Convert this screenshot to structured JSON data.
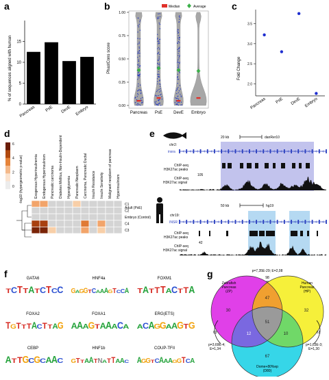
{
  "panels": {
    "a": {
      "letter": "a",
      "chart_data": {
        "type": "bar",
        "categories": [
          "Pancreas",
          "PsE",
          "DevE",
          "Embryo"
        ],
        "values": [
          12.5,
          14.8,
          10.3,
          11.3
        ],
        "ylabel": "% of sequences aligned with human",
        "ylim": [
          0,
          20
        ],
        "yticks": [
          0,
          5,
          10,
          15
        ],
        "xlabel": ""
      }
    },
    "b": {
      "letter": "b",
      "ylabel": "PhastCons score",
      "legend": {
        "median": "Median",
        "average": "Average"
      },
      "colors": {
        "median": "#e0302a",
        "average": "#3cb04a",
        "violin": "#8a8a8a",
        "points": "#2d3fbf"
      },
      "chart_data": {
        "type": "violin",
        "categories": [
          "Pancreas",
          "PsE",
          "DevE",
          "Embryo"
        ],
        "ylabel": "PhastCons score",
        "ylim": [
          0,
          1
        ],
        "yticks": [
          "0.00",
          "0.25",
          "0.50",
          "0.75",
          "1.00"
        ],
        "series": [
          {
            "name": "Median",
            "values": [
              0.05,
              0.08,
              0.05,
              0.08
            ]
          },
          {
            "name": "Average",
            "values": [
              0.38,
              0.4,
              0.38,
              0.37
            ]
          }
        ]
      }
    },
    "c": {
      "letter": "c",
      "chart_data": {
        "type": "scatter",
        "categories": [
          "Pancreas",
          "PsE",
          "DevE",
          "Embryo"
        ],
        "values": [
          3.22,
          2.8,
          3.75,
          1.76
        ],
        "ylabel": "Fold Change",
        "ylim": [
          1.7,
          3.85
        ],
        "yticks": [
          "2.0",
          "2.5",
          "3.0",
          "3.5"
        ]
      }
    },
    "d": {
      "letter": "d",
      "scale_label": "-log10 (hypergeometric p-value)",
      "scale_ticks": [
        "6",
        "4",
        "2",
        "0"
      ],
      "columns": [
        "Exogenous Hyperinsulinemia",
        "Endogenous Hyperinsulinism",
        "Pancreatic carcinoma",
        "Diabetes Mellitus, Non-Insulin-Dependent",
        "Hyperglycemia",
        "Pancreatic Neoplasm",
        "Carcinoma, Pancreatic Ductal",
        "Insulin Resistance",
        "Insulin Sensitivity",
        "Malignant neoplasm of pancreas",
        "Hyperinsulinism"
      ],
      "rows": [
        {
          "label": "C1",
          "note": "Adult (PsE)",
          "values": [
            2,
            2,
            0,
            0,
            0,
            1,
            0,
            0,
            0,
            0,
            0
          ]
        },
        {
          "label": "C2",
          "note": "",
          "values": [
            0,
            0,
            0,
            0,
            0,
            0,
            0,
            0,
            0,
            0,
            0
          ]
        },
        {
          "label": "",
          "note": "Embryo (Control)",
          "values": [
            0,
            0,
            0,
            0,
            0,
            0,
            0,
            0,
            0,
            0,
            0
          ]
        },
        {
          "label": "C4",
          "note": "",
          "values": [
            5,
            5,
            0,
            0,
            0,
            0,
            3,
            0,
            2,
            0,
            0
          ]
        },
        {
          "label": "C3",
          "note": "",
          "values": [
            6,
            6,
            1,
            0,
            0,
            0,
            2,
            0,
            1,
            0,
            0
          ]
        }
      ]
    },
    "e": {
      "letter": "e",
      "zebrafish": {
        "chr": "chr2:",
        "scale": "20 kb",
        "assembly": "danRer10",
        "gene": "insra",
        "peaks_label": "ChIP-seq H3K27ac peaks",
        "signal_label": "ChIP-seq H3K27ac signal",
        "signal_max": "105"
      },
      "human": {
        "chr": "chr19:",
        "scale": "50 kb",
        "assembly": "hg19",
        "gene": "INSR",
        "peaks_label": "ChIP-seq H3K27ac peaks",
        "signal_label": "ChIP-seq H3K27ac signal",
        "signal_max": "42"
      }
    },
    "f": {
      "letter": "f",
      "motifs": [
        {
          "name": "GATA6",
          "seq": "TCTTATCTCC"
        },
        {
          "name": "HNF4a",
          "seq": "GAGGTCAAAGTCCA"
        },
        {
          "name": "FOXM1",
          "seq": "TATTTACTTA"
        },
        {
          "name": "FOXA2",
          "seq": "TGTTTACTTAG"
        },
        {
          "name": "FOXA1",
          "seq": "AAAGTAAACA"
        },
        {
          "name": "ERG(ETS)",
          "seq": "ACAGGAAGTG"
        },
        {
          "name": "CEBP",
          "seq": "ATTGCGCAAC"
        },
        {
          "name": "HNF1b",
          "seq": "GTTAATNATTAAC"
        },
        {
          "name": "COUP-TFII",
          "seq": "AGGTCAAAGGTCA"
        }
      ],
      "colors": {
        "A": "#23a23a",
        "C": "#2a4fd1",
        "G": "#f2a20c",
        "T": "#d62a22",
        "N": "#888888"
      }
    },
    "g": {
      "letter": "g",
      "sets": {
        "zp": "Zebrafish Pancreas (ZP)",
        "hp": "Human Pancreas (HP)",
        "d80": "Dome+80%ep (D80)"
      },
      "counts": {
        "zp_only": "30",
        "hp_only": "32",
        "d80_only": "67",
        "zp_hp": "47",
        "zp_d80": "12",
        "hp_d80": "10",
        "all": "51"
      },
      "stats": {
        "zp_hp": "p=7,35E-29; E=2,08",
        "zp_hp_n": "98",
        "zp_d80": "p=3,69E-4; E=1,34",
        "zp_d80_n": "63",
        "hp_d80": "p=1,63E-3; E=1,30",
        "hp_d80_n": "61"
      },
      "colors": {
        "zp": "#e040e8",
        "hp": "#f6f03a",
        "d80": "#36d6e8",
        "zp_hp": "#f0a030",
        "zp_d80": "#7a68e0",
        "hp_d80": "#70d868",
        "all": "#9a9a9a"
      }
    }
  }
}
